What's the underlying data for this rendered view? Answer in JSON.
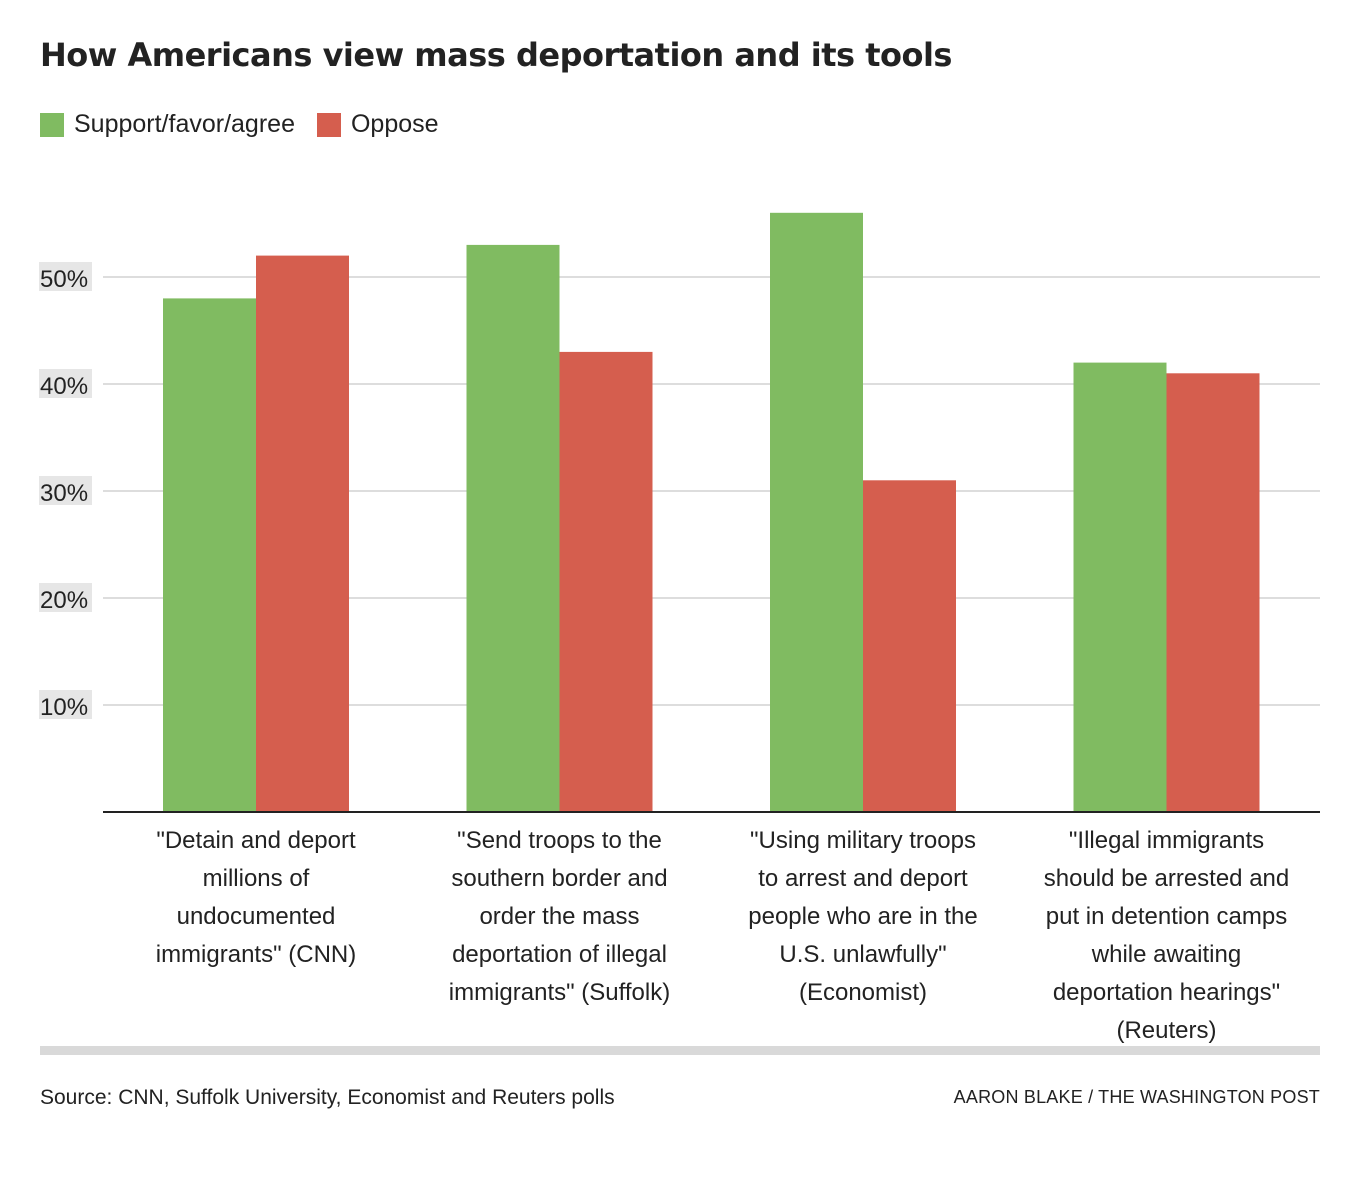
{
  "title": "How Americans view mass deportation and its tools",
  "colors": {
    "support": "#80bb61",
    "oppose": "#d55e4e",
    "grid": "#dddddd",
    "axis": "#222222",
    "tick_bg": "#e6e6e6"
  },
  "legend": [
    {
      "label": "Support/favor/agree",
      "color": "#80bb61"
    },
    {
      "label": "Oppose",
      "color": "#d55e4e"
    }
  ],
  "chart_data": {
    "type": "bar",
    "categories": [
      "\"Detain and deport millions of undocumented immigrants\" (CNN)",
      "\"Send troops to the southern border and order the mass deportation of illegal immigrants\" (Suffolk)",
      "\"Using military troops to arrest and deport people who are in the U.S. unlawfully\" (Economist)",
      "\"Illegal immigrants should be arrested and put in detention camps while awaiting deportation hearings\" (Reuters)"
    ],
    "category_lines": [
      [
        "\"Detain and deport",
        "millions of",
        "undocumented",
        "immigrants\" (CNN)"
      ],
      [
        "\"Send troops to the",
        "southern border and",
        "order the mass",
        "deportation of illegal",
        "immigrants\" (Suffolk)"
      ],
      [
        "\"Using military troops",
        "to arrest and deport",
        "people who are in the",
        "U.S. unlawfully\"",
        "(Economist)"
      ],
      [
        "\"Illegal immigrants",
        "should be arrested and",
        "put in detention camps",
        "while awaiting",
        "deportation hearings\"",
        "(Reuters)"
      ]
    ],
    "series": [
      {
        "name": "Support/favor/agree",
        "values": [
          48,
          53,
          56,
          42
        ]
      },
      {
        "name": "Oppose",
        "values": [
          52,
          43,
          31,
          41
        ]
      }
    ],
    "yticks": [
      10,
      20,
      30,
      40,
      50
    ],
    "ytick_labels": [
      "10%",
      "20%",
      "30%",
      "40%",
      "50%"
    ],
    "ylim": [
      0,
      60
    ],
    "grid": true,
    "legend_position": "top-left"
  },
  "source": "Source: CNN, Suffolk University, Economist and Reuters polls",
  "credit": "AARON BLAKE / THE WASHINGTON POST"
}
